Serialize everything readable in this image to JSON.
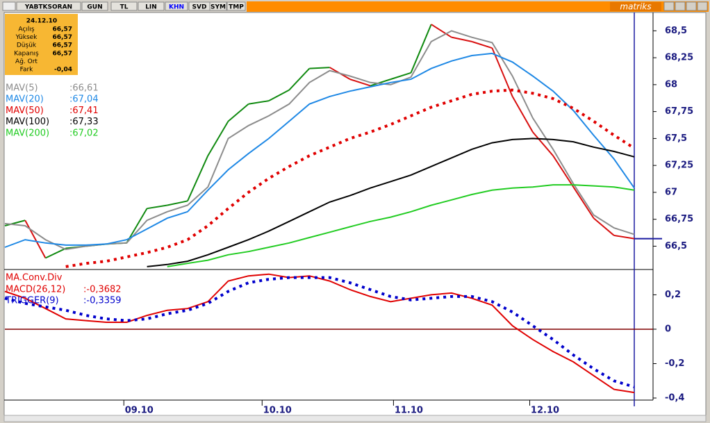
{
  "toolbar": {
    "buttons": [
      "YABTKSORAN",
      "GUN",
      "TL",
      "LIN",
      "KHN",
      "SVD",
      "SYM",
      "TMP"
    ],
    "brand": "matriks"
  },
  "info_box": {
    "date": "24.12.10",
    "rows": [
      {
        "label": "Açılış",
        "value": "66,57"
      },
      {
        "label": "Yüksek",
        "value": "66,57"
      },
      {
        "label": "Düşük",
        "value": "66,57"
      },
      {
        "label": "Kapanış",
        "value": "66,57"
      },
      {
        "label": "Ağ. Ort",
        "value": ""
      },
      {
        "label": "Fark",
        "value": "-0,04"
      }
    ]
  },
  "chart_data": [
    {
      "type": "line",
      "x": [
        0,
        1,
        2,
        3,
        4,
        5,
        6,
        7,
        8,
        9,
        10,
        11,
        12,
        13,
        14,
        15,
        16,
        17,
        18,
        19,
        20,
        21,
        22,
        23,
        24,
        25,
        26,
        27,
        28,
        29,
        30,
        31
      ],
      "xlim": [
        0,
        31
      ],
      "ylim": [
        66.29,
        68.67
      ],
      "yticks": [
        {
          "value": 66.5,
          "label": "66,5"
        },
        {
          "value": 66.75,
          "label": "66,75"
        },
        {
          "value": 67,
          "label": "67"
        },
        {
          "value": 67.25,
          "label": "67,25"
        },
        {
          "value": 67.5,
          "label": "67,5"
        },
        {
          "value": 67.75,
          "label": "67,75"
        },
        {
          "value": 68,
          "label": "68"
        },
        {
          "value": 68.25,
          "label": "68,25"
        },
        {
          "value": 68.5,
          "label": "68,5"
        }
      ],
      "series": [
        {
          "color": "#d81010",
          "up_color": "#108a10",
          "style": "direction",
          "values": [
            66.69,
            66.74,
            66.39,
            66.48,
            66.5,
            66.52,
            66.53,
            66.85,
            66.88,
            66.92,
            67.34,
            67.66,
            67.82,
            67.85,
            67.95,
            68.15,
            68.16,
            68.05,
            67.99,
            68.05,
            68.11,
            68.56,
            68.44,
            68.4,
            68.34,
            67.89,
            67.56,
            67.34,
            67.05,
            66.76,
            66.6,
            66.57
          ]
        },
        {
          "name": "MAV(5)",
          "value_label": ":66,61",
          "color": "#8c8c8c",
          "style": "solid",
          "values": [
            66.71,
            66.69,
            66.56,
            66.47,
            66.5,
            66.52,
            66.53,
            66.74,
            66.82,
            66.88,
            67.05,
            67.5,
            67.62,
            67.71,
            67.82,
            68.02,
            68.13,
            68.08,
            68.02,
            68.0,
            68.07,
            68.4,
            68.5,
            68.44,
            68.39,
            68.08,
            67.69,
            67.4,
            67.08,
            66.79,
            66.67,
            66.61
          ]
        },
        {
          "name": "MAV(20)",
          "value_label": ":67,04",
          "color": "#1e88e5",
          "style": "solid",
          "values": [
            66.49,
            66.56,
            66.53,
            66.51,
            66.51,
            66.52,
            66.56,
            66.66,
            66.76,
            66.82,
            67.02,
            67.21,
            67.36,
            67.5,
            67.66,
            67.82,
            67.89,
            67.94,
            67.98,
            68.02,
            68.05,
            68.15,
            68.22,
            68.27,
            68.29,
            68.21,
            68.08,
            67.94,
            67.76,
            67.53,
            67.31,
            67.04
          ]
        },
        {
          "name": "MAV(50)",
          "value_label": ":67,41",
          "color": "#e00000",
          "style": "dotted",
          "values": [
            null,
            null,
            null,
            66.31,
            66.34,
            66.36,
            66.4,
            66.44,
            66.49,
            66.56,
            66.69,
            66.85,
            67.0,
            67.13,
            67.24,
            67.34,
            67.42,
            67.5,
            67.56,
            67.63,
            67.71,
            67.79,
            67.85,
            67.91,
            67.94,
            67.95,
            67.92,
            67.87,
            67.78,
            67.66,
            67.53,
            67.41
          ]
        },
        {
          "name": "MAV(100)",
          "value_label": ":67,33",
          "color": "#000000",
          "style": "solid",
          "values": [
            null,
            null,
            null,
            null,
            null,
            null,
            null,
            66.31,
            66.33,
            66.36,
            66.42,
            66.49,
            66.56,
            66.64,
            66.73,
            66.82,
            66.91,
            66.97,
            67.04,
            67.1,
            67.16,
            67.24,
            67.32,
            67.4,
            67.46,
            67.49,
            67.5,
            67.49,
            67.47,
            67.42,
            67.38,
            67.33
          ]
        },
        {
          "name": "MAV(200)",
          "value_label": ":67,02",
          "color": "#22cc22",
          "style": "solid",
          "values": [
            null,
            null,
            null,
            null,
            null,
            null,
            null,
            null,
            66.31,
            66.34,
            66.37,
            66.42,
            66.45,
            66.49,
            66.53,
            66.58,
            66.63,
            66.68,
            66.73,
            66.77,
            66.82,
            66.88,
            66.93,
            66.98,
            67.02,
            67.04,
            67.05,
            67.07,
            67.07,
            67.06,
            67.05,
            67.02
          ]
        }
      ]
    },
    {
      "type": "line",
      "title": "MA.Conv.Div",
      "x": [
        0,
        1,
        2,
        3,
        4,
        5,
        6,
        7,
        8,
        9,
        10,
        11,
        12,
        13,
        14,
        15,
        16,
        17,
        18,
        19,
        20,
        21,
        22,
        23,
        24,
        25,
        26,
        27,
        28,
        29,
        30,
        31
      ],
      "xlim": [
        0,
        31
      ],
      "ylim": [
        -0.408,
        0.343
      ],
      "yticks": [
        {
          "value": 0.2,
          "label": "0,2"
        },
        0,
        {
          "value": -0.2,
          "label": "-0,2"
        },
        {
          "value": -0.4,
          "label": "-0,4"
        }
      ],
      "zero_line_color": "#800000",
      "xticks": [
        {
          "value": 5.86,
          "label": "09.10"
        },
        {
          "value": 12.67,
          "label": "10.10"
        },
        {
          "value": 19.14,
          "label": "11.10"
        },
        {
          "value": 25.85,
          "label": "12.10"
        }
      ],
      "series": [
        {
          "name": "MACD(26,12)",
          "value_label": ":-0,3682",
          "color": "#e00000",
          "style": "solid",
          "values": [
            0.22,
            0.18,
            0.12,
            0.06,
            0.05,
            0.04,
            0.04,
            0.08,
            0.11,
            0.12,
            0.16,
            0.28,
            0.31,
            0.32,
            0.3,
            0.31,
            0.28,
            0.23,
            0.19,
            0.16,
            0.18,
            0.2,
            0.21,
            0.18,
            0.14,
            0.02,
            -0.06,
            -0.13,
            -0.19,
            -0.27,
            -0.35,
            -0.3682
          ]
        },
        {
          "name": "TRIGGER(9)",
          "value_label": ":-0,3359",
          "color": "#0000cc",
          "style": "dotted",
          "values": [
            0.18,
            0.15,
            0.13,
            0.11,
            0.08,
            0.06,
            0.05,
            0.06,
            0.09,
            0.11,
            0.15,
            0.22,
            0.27,
            0.29,
            0.3,
            0.3,
            0.3,
            0.27,
            0.23,
            0.19,
            0.17,
            0.18,
            0.19,
            0.19,
            0.16,
            0.1,
            0.02,
            -0.06,
            -0.15,
            -0.23,
            -0.3,
            -0.3359
          ]
        }
      ]
    }
  ]
}
